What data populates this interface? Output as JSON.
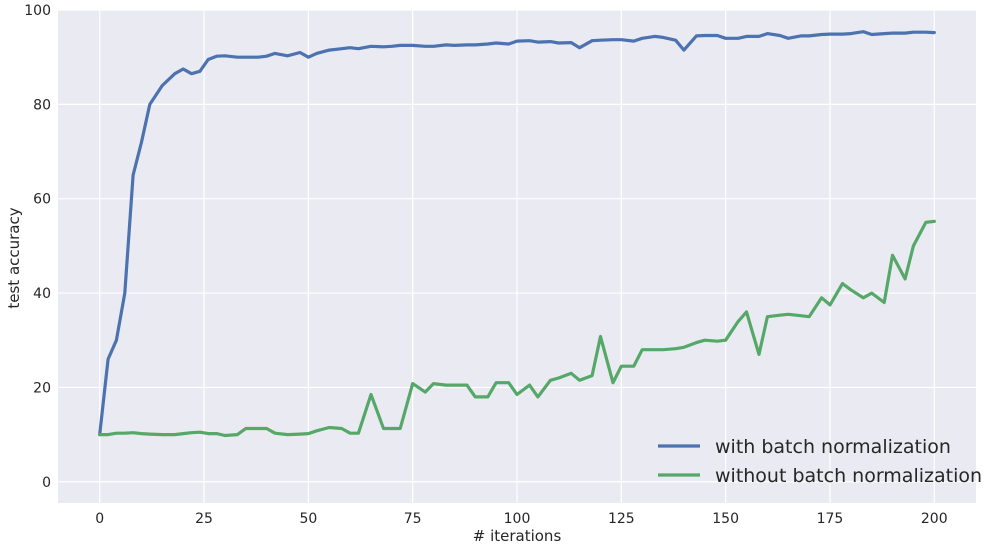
{
  "chart_data": {
    "type": "line",
    "xlabel": "# iterations",
    "ylabel": "test accuracy",
    "xlim": [
      -10,
      210
    ],
    "ylim": [
      -4.5,
      100
    ],
    "x_ticks": [
      0,
      25,
      50,
      75,
      100,
      125,
      150,
      175,
      200
    ],
    "y_ticks": [
      0,
      20,
      40,
      60,
      80,
      100
    ],
    "grid": true,
    "legend_position": "lower-right",
    "background": "#EAEAF2",
    "x": [
      0,
      2,
      4,
      6,
      8,
      10,
      12,
      15,
      18,
      20,
      22,
      24,
      26,
      28,
      30,
      33,
      35,
      38,
      40,
      42,
      45,
      48,
      50,
      52,
      55,
      58,
      60,
      62,
      65,
      68,
      70,
      72,
      75,
      78,
      80,
      83,
      85,
      88,
      90,
      93,
      95,
      98,
      100,
      103,
      105,
      108,
      110,
      113,
      115,
      118,
      120,
      123,
      125,
      128,
      130,
      133,
      135,
      138,
      140,
      143,
      145,
      148,
      150,
      153,
      155,
      158,
      160,
      163,
      165,
      168,
      170,
      173,
      175,
      178,
      180,
      183,
      185,
      188,
      190,
      193,
      195,
      198,
      200
    ],
    "series": [
      {
        "name": "with batch normalization",
        "color": "#4C72B0",
        "values": [
          10,
          26,
          30,
          40,
          65,
          72,
          80,
          84,
          86.5,
          87.5,
          86.5,
          87,
          89.5,
          90.2,
          90.3,
          90,
          90,
          90,
          90.2,
          90.8,
          90.3,
          91,
          90,
          90.8,
          91.5,
          91.8,
          92,
          91.8,
          92.3,
          92.2,
          92.3,
          92.5,
          92.5,
          92.3,
          92.3,
          92.6,
          92.5,
          92.6,
          92.6,
          92.8,
          93,
          92.8,
          93.4,
          93.5,
          93.2,
          93.3,
          93,
          93.1,
          92,
          93.5,
          93.6,
          93.7,
          93.7,
          93.4,
          94,
          94.4,
          94.2,
          93.6,
          91.5,
          94.5,
          94.6,
          94.6,
          94,
          94,
          94.4,
          94.4,
          95,
          94.6,
          94,
          94.5,
          94.5,
          94.8,
          94.9,
          94.9,
          95,
          95.4,
          94.8,
          95,
          95.1,
          95.1,
          95.3,
          95.3,
          95.2
        ]
      },
      {
        "name": "without batch normalization",
        "color": "#55A868",
        "values": [
          10,
          10,
          10.3,
          10.3,
          10.4,
          10.2,
          10.1,
          10,
          10,
          10.2,
          10.4,
          10.5,
          10.2,
          10.2,
          9.8,
          10,
          11.3,
          11.3,
          11.3,
          10.3,
          10,
          10.1,
          10.2,
          10.8,
          11.5,
          11.3,
          10.3,
          10.3,
          18.5,
          11.3,
          11.3,
          11.3,
          20.8,
          19,
          20.8,
          20.5,
          20.5,
          20.5,
          18,
          18,
          21,
          21,
          18.5,
          20.5,
          18,
          21.5,
          22,
          23,
          21.5,
          22.5,
          30.8,
          21,
          24.5,
          24.5,
          28,
          28,
          28,
          28.2,
          28.5,
          29.5,
          30,
          29.8,
          30,
          34,
          36,
          27,
          35,
          35.3,
          35.5,
          35.2,
          35,
          39,
          37.5,
          42,
          40.7,
          39,
          40,
          38,
          48,
          43,
          50,
          55,
          55.2
        ]
      }
    ]
  }
}
